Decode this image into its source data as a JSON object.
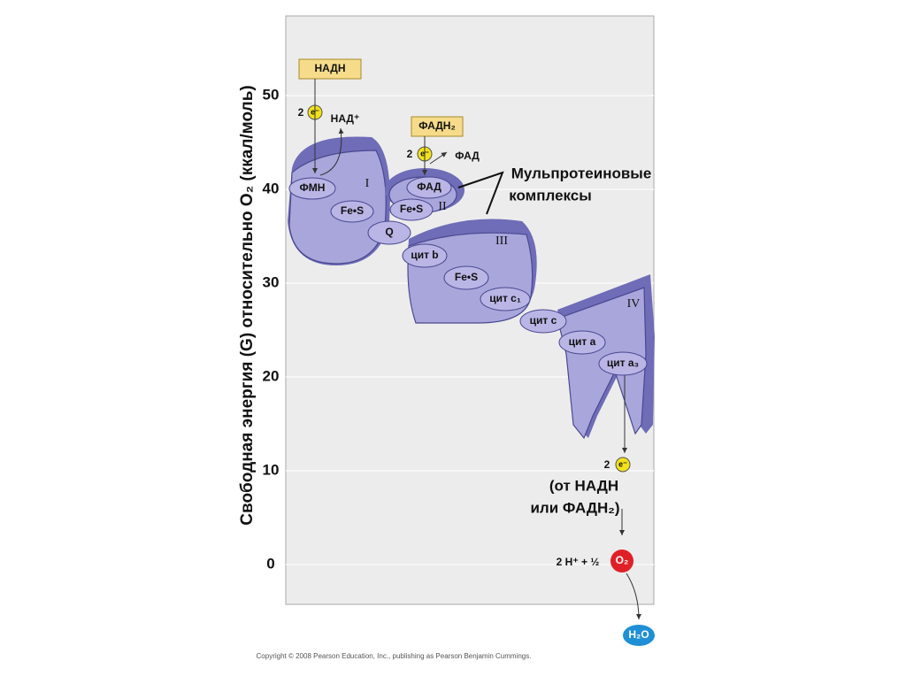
{
  "axis": {
    "label": "Свободная энергия (G) относительно O₂ (ккал/моль)",
    "ticks": [
      50,
      40,
      30,
      20,
      10,
      0
    ]
  },
  "donors": {
    "nadh": "НАДН",
    "fadh2": "ФАДН₂",
    "nad": "НАД⁺",
    "fad": "ФАД"
  },
  "electrons": [
    {
      "count": "2",
      "symbol": "e⁻"
    },
    {
      "count": "2",
      "symbol": "e⁻"
    },
    {
      "count": "2",
      "symbol": "e⁻"
    }
  ],
  "complexes": {
    "i": "I",
    "ii": "II",
    "iii": "III",
    "iv": "IV"
  },
  "carriers": {
    "fmn": "ФМН",
    "fes1": "Fe•S",
    "fad": "ФАД",
    "fes2": "Fe•S",
    "q": "Q",
    "cytb": "цит b",
    "fes3": "Fe•S",
    "cytc1": "цит c₁",
    "cytc": "цит c",
    "cyta": "цит a",
    "cyta3": "цит a₃"
  },
  "annotation": {
    "line1": "Мульпротеиновые",
    "line2": "комплексы"
  },
  "source": {
    "line1": "(от НАДН",
    "line2": "или ФАДН₂)"
  },
  "reaction": {
    "left": "2 H⁺ + ½",
    "o2": "O₂",
    "h2o": "H₂O"
  },
  "copyright": "Copyright © 2008 Pearson Education, Inc., publishing as Pearson Benjamin Cummings."
}
